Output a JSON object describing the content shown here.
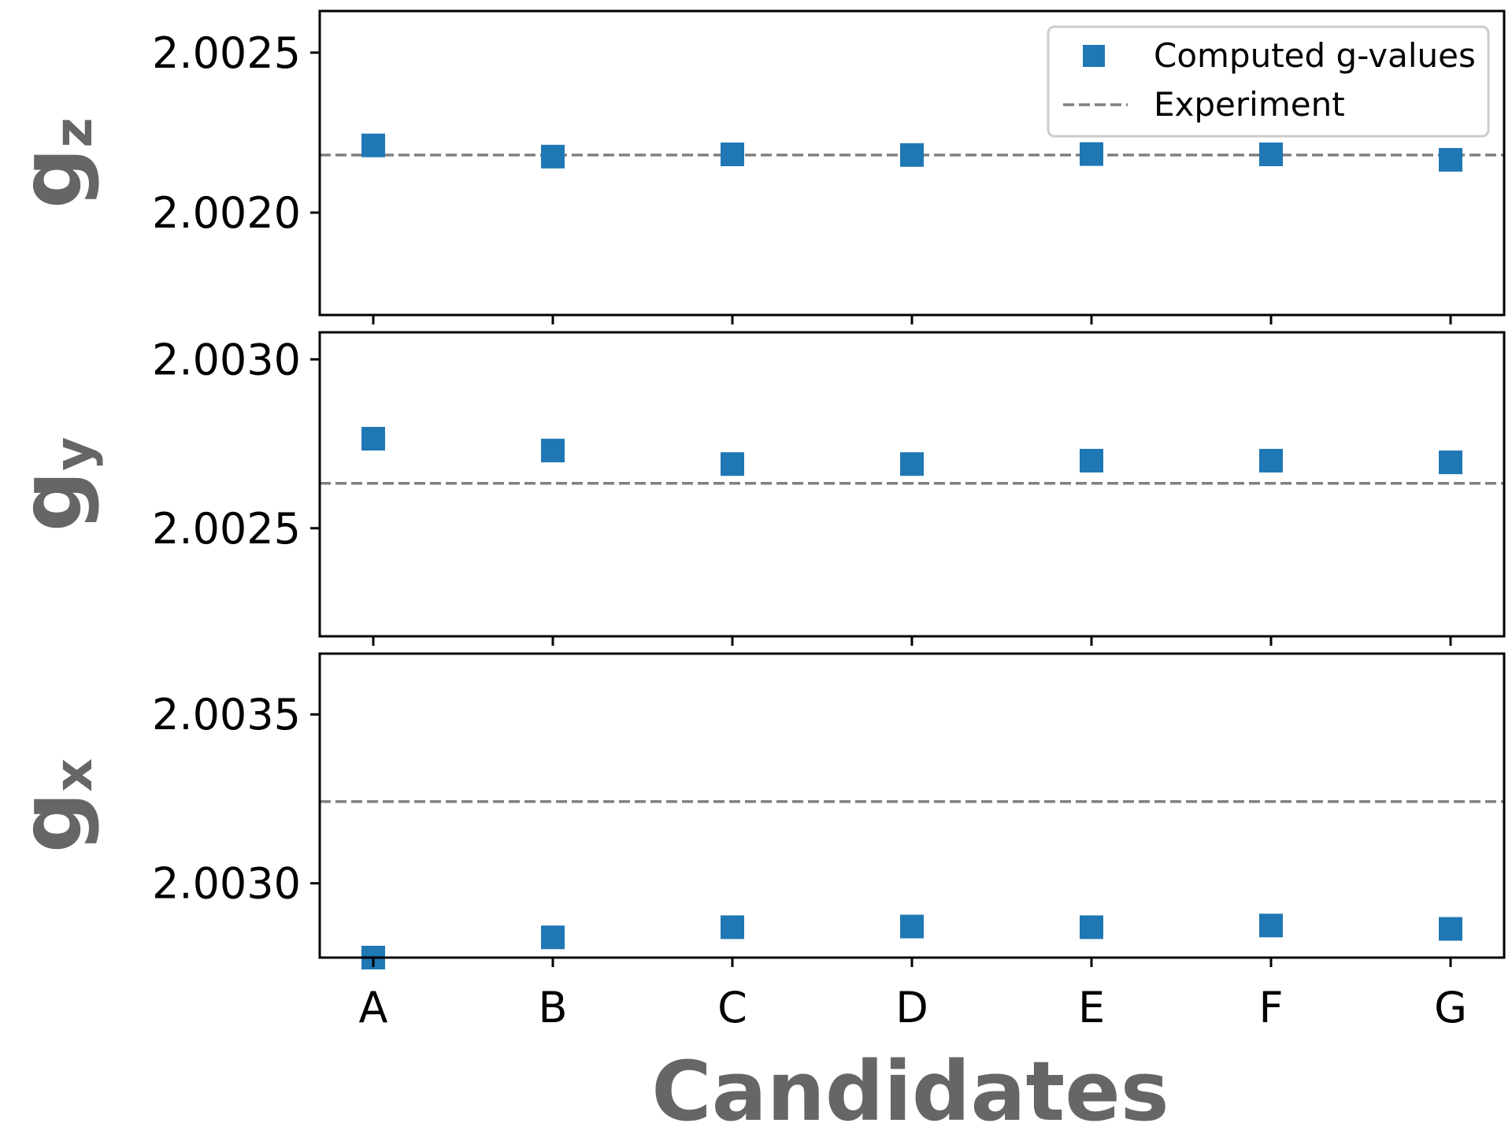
{
  "colors": {
    "marker": "#1f77b4",
    "experiment": "#808080",
    "axis_label": "#666666",
    "frame": "#000000",
    "legend_border": "#cccccc"
  },
  "chart_data": {
    "type": "scatter",
    "categories": [
      "A",
      "B",
      "C",
      "D",
      "E",
      "F",
      "G"
    ],
    "xlabel": "Candidates",
    "legend": {
      "position": "top-right",
      "computed_label": "Computed g-values",
      "experiment_label": "Experiment"
    },
    "panels": [
      {
        "ylabel_main": "g",
        "ylabel_sub": "z",
        "ylim": [
          2.00168,
          2.00263
        ],
        "yticks": [
          2.002,
          2.0025
        ],
        "ytick_labels": [
          "2.0020",
          "2.0025"
        ],
        "experiment": 2.00218,
        "values": [
          2.00221,
          2.002175,
          2.002182,
          2.00218,
          2.002183,
          2.002182,
          2.002165
        ]
      },
      {
        "ylabel_main": "g",
        "ylabel_sub": "y",
        "ylim": [
          2.00218,
          2.00308
        ],
        "yticks": [
          2.0025,
          2.003
        ],
        "ytick_labels": [
          "2.0025",
          "2.0030"
        ],
        "experiment": 2.002633,
        "values": [
          2.002765,
          2.00273,
          2.00269,
          2.00269,
          2.0027,
          2.0027,
          2.002695
        ]
      },
      {
        "ylabel_main": "g",
        "ylabel_sub": "x",
        "ylim": [
          2.00278,
          2.00368
        ],
        "yticks": [
          2.003,
          2.0035
        ],
        "ytick_labels": [
          "2.0030",
          "2.0035"
        ],
        "experiment": 2.003242,
        "values": [
          2.00278,
          2.00284,
          2.00287,
          2.002872,
          2.00287,
          2.002875,
          2.002865
        ]
      }
    ]
  }
}
